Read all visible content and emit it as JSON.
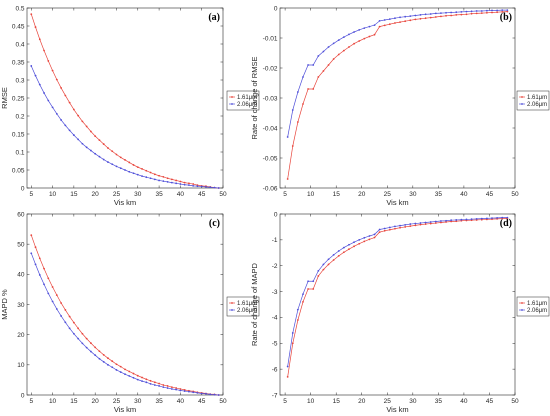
{
  "chart_data": [
    {
      "type": "line",
      "panel_label": "(a)",
      "xlabel": "Vis km",
      "ylabel": "RMSE",
      "xlim": [
        4,
        50
      ],
      "ylim": [
        0,
        0.5
      ],
      "grid": false,
      "legend": "right",
      "xticks": [
        5,
        10,
        15,
        20,
        25,
        30,
        35,
        40,
        45,
        50
      ],
      "xtick_labels": [
        "5",
        "10",
        "15",
        "20",
        "25",
        "30",
        "35",
        "40",
        "45",
        "50"
      ],
      "yticks": [
        0,
        0.05,
        0.1,
        0.15,
        0.2,
        0.25,
        0.3,
        0.35,
        0.4,
        0.45,
        0.5
      ],
      "ytick_labels": [
        "0",
        "0.05",
        "0.1",
        "0.15",
        "0.2",
        "0.25",
        "0.3",
        "0.35",
        "0.4",
        "0.45",
        "0.5"
      ],
      "x": [
        5,
        6,
        7,
        8,
        9,
        10,
        11,
        12,
        13,
        14,
        15,
        16,
        17,
        18,
        19,
        20,
        21,
        22,
        23,
        24,
        25,
        26,
        27,
        28,
        29,
        30,
        31,
        32,
        33,
        34,
        35,
        36,
        37,
        38,
        39,
        40,
        41,
        42,
        43,
        44,
        45,
        46,
        47,
        48,
        49
      ],
      "series": [
        {
          "name": "1.61μm",
          "color": "#e8453c",
          "values": [
            0.483,
            0.447,
            0.413,
            0.382,
            0.353,
            0.326,
            0.301,
            0.278,
            0.257,
            0.237,
            0.218,
            0.201,
            0.185,
            0.171,
            0.157,
            0.144,
            0.133,
            0.122,
            0.111,
            0.102,
            0.093,
            0.085,
            0.078,
            0.071,
            0.064,
            0.058,
            0.053,
            0.048,
            0.043,
            0.038,
            0.034,
            0.031,
            0.027,
            0.024,
            0.021,
            0.018,
            0.015,
            0.013,
            0.011,
            0.008,
            0.006,
            0.005,
            0.003,
            0.001,
            0
          ]
        },
        {
          "name": "2.06μm",
          "color": "#4f4fd9",
          "values": [
            0.339,
            0.312,
            0.287,
            0.264,
            0.243,
            0.224,
            0.206,
            0.189,
            0.174,
            0.16,
            0.147,
            0.135,
            0.123,
            0.113,
            0.104,
            0.095,
            0.087,
            0.079,
            0.072,
            0.066,
            0.06,
            0.055,
            0.05,
            0.045,
            0.041,
            0.037,
            0.033,
            0.03,
            0.027,
            0.024,
            0.021,
            0.019,
            0.017,
            0.015,
            0.013,
            0.011,
            0.009,
            0.008,
            0.006,
            0.005,
            0.004,
            0.003,
            0.002,
            0.001,
            0
          ]
        }
      ]
    },
    {
      "type": "line",
      "panel_label": "(b)",
      "xlabel": "Vis km",
      "ylabel": "Rate of change of RMSE",
      "xlim": [
        4,
        50
      ],
      "ylim": [
        -0.06,
        0
      ],
      "grid": false,
      "legend": "right",
      "xticks": [
        5,
        10,
        15,
        20,
        25,
        30,
        35,
        40,
        45,
        50
      ],
      "xtick_labels": [
        "5",
        "10",
        "15",
        "20",
        "25",
        "30",
        "35",
        "40",
        "45",
        "50"
      ],
      "yticks": [
        -0.06,
        -0.05,
        -0.04,
        -0.03,
        -0.02,
        -0.01,
        0
      ],
      "ytick_labels": [
        "-0.06",
        "-0.05",
        "-0.04",
        "-0.03",
        "-0.02",
        "-0.01",
        "0"
      ],
      "x": [
        5.5,
        6.5,
        7.5,
        8.5,
        9.5,
        10.5,
        11.5,
        12.5,
        13.5,
        14.5,
        15.5,
        16.5,
        17.5,
        18.5,
        19.5,
        20.5,
        21.5,
        22.5,
        23.5,
        24.5,
        25.5,
        26.5,
        27.5,
        28.5,
        29.5,
        30.5,
        31.5,
        32.5,
        33.5,
        34.5,
        35.5,
        36.5,
        37.5,
        38.5,
        39.5,
        40.5,
        41.5,
        42.5,
        43.5,
        44.5,
        45.5,
        46.5,
        47.5,
        48.5
      ],
      "series": [
        {
          "name": "1.61μm",
          "color": "#e8453c",
          "values": [
            -0.057,
            -0.046,
            -0.038,
            -0.032,
            -0.027,
            -0.027,
            -0.023,
            -0.021,
            -0.019,
            -0.017,
            -0.0155,
            -0.0142,
            -0.013,
            -0.0119,
            -0.011,
            -0.0102,
            -0.0095,
            -0.0089,
            -0.0062,
            -0.0058,
            -0.0054,
            -0.005,
            -0.0047,
            -0.0044,
            -0.0041,
            -0.0038,
            -0.0036,
            -0.0034,
            -0.0032,
            -0.003,
            -0.0028,
            -0.0026,
            -0.0025,
            -0.0023,
            -0.0022,
            -0.0021,
            -0.0019,
            -0.0018,
            -0.0017,
            -0.0016,
            -0.0015,
            -0.0014,
            -0.0013,
            -0.0012
          ]
        },
        {
          "name": "2.06μm",
          "color": "#4f4fd9",
          "values": [
            -0.043,
            -0.034,
            -0.028,
            -0.023,
            -0.019,
            -0.019,
            -0.016,
            -0.0145,
            -0.013,
            -0.0118,
            -0.0107,
            -0.0097,
            -0.0088,
            -0.008,
            -0.0073,
            -0.0067,
            -0.0062,
            -0.0057,
            -0.0043,
            -0.004,
            -0.0037,
            -0.0034,
            -0.0031,
            -0.0029,
            -0.0027,
            -0.0025,
            -0.0023,
            -0.0021,
            -0.002,
            -0.0018,
            -0.0017,
            -0.0016,
            -0.0015,
            -0.0014,
            -0.0013,
            -0.0012,
            -0.0011,
            -0.001,
            -0.001,
            -0.0009,
            -0.0008,
            -0.0008,
            -0.0007,
            -0.0007
          ]
        }
      ]
    },
    {
      "type": "line",
      "panel_label": "(c)",
      "xlabel": "Vis km",
      "ylabel": "MAPD %",
      "xlim": [
        4,
        50
      ],
      "ylim": [
        0,
        60
      ],
      "grid": false,
      "legend": "right",
      "xticks": [
        5,
        10,
        15,
        20,
        25,
        30,
        35,
        40,
        45,
        50
      ],
      "xtick_labels": [
        "5",
        "10",
        "15",
        "20",
        "25",
        "30",
        "35",
        "40",
        "45",
        "50"
      ],
      "yticks": [
        0,
        10,
        20,
        30,
        40,
        50,
        60
      ],
      "ytick_labels": [
        "0",
        "10",
        "20",
        "30",
        "40",
        "50",
        "60"
      ],
      "x": [
        5,
        6,
        7,
        8,
        9,
        10,
        11,
        12,
        13,
        14,
        15,
        16,
        17,
        18,
        19,
        20,
        21,
        22,
        23,
        24,
        25,
        26,
        27,
        28,
        29,
        30,
        31,
        32,
        33,
        34,
        35,
        36,
        37,
        38,
        39,
        40,
        41,
        42,
        43,
        44,
        45,
        46,
        47,
        48,
        49
      ],
      "series": [
        {
          "name": "1.61μm",
          "color": "#e8453c",
          "values": [
            53.0,
            49.0,
            45.3,
            41.9,
            38.7,
            35.8,
            33.1,
            30.5,
            28.2,
            26.0,
            24.0,
            22.1,
            20.3,
            18.7,
            17.2,
            15.8,
            14.5,
            13.3,
            12.2,
            11.2,
            10.2,
            9.4,
            8.5,
            7.8,
            7.1,
            6.4,
            5.8,
            5.2,
            4.7,
            4.2,
            3.8,
            3.3,
            3.0,
            2.6,
            2.3,
            2.0,
            1.7,
            1.4,
            1.2,
            0.9,
            0.7,
            0.5,
            0.3,
            0.2,
            0.0
          ]
        },
        {
          "name": "2.06μm",
          "color": "#4f4fd9",
          "values": [
            47.0,
            43.3,
            39.8,
            36.7,
            33.7,
            31.0,
            28.5,
            26.2,
            24.1,
            22.1,
            20.3,
            18.7,
            17.1,
            15.7,
            14.4,
            13.2,
            12.0,
            11.0,
            10.0,
            9.2,
            8.3,
            7.6,
            6.9,
            6.3,
            5.7,
            5.1,
            4.6,
            4.2,
            3.7,
            3.3,
            3.0,
            2.6,
            2.3,
            2.0,
            1.8,
            1.5,
            1.3,
            1.1,
            0.9,
            0.7,
            0.5,
            0.4,
            0.2,
            0.1,
            0.0
          ]
        }
      ]
    },
    {
      "type": "line",
      "panel_label": "(d)",
      "xlabel": "Vis km",
      "ylabel": "Rate of change of MAPD",
      "xlim": [
        4,
        50
      ],
      "ylim": [
        -7,
        0
      ],
      "grid": false,
      "legend": "right",
      "xticks": [
        5,
        10,
        15,
        20,
        25,
        30,
        35,
        40,
        45,
        50
      ],
      "xtick_labels": [
        "5",
        "10",
        "15",
        "20",
        "25",
        "30",
        "35",
        "40",
        "45",
        "50"
      ],
      "yticks": [
        -7,
        -6,
        -5,
        -4,
        -3,
        -2,
        -1,
        0
      ],
      "ytick_labels": [
        "-7",
        "-6",
        "-5",
        "-4",
        "-3",
        "-2",
        "-1",
        "0"
      ],
      "x": [
        5.5,
        6.5,
        7.5,
        8.5,
        9.5,
        10.5,
        11.5,
        12.5,
        13.5,
        14.5,
        15.5,
        16.5,
        17.5,
        18.5,
        19.5,
        20.5,
        21.5,
        22.5,
        23.5,
        24.5,
        25.5,
        26.5,
        27.5,
        28.5,
        29.5,
        30.5,
        31.5,
        32.5,
        33.5,
        34.5,
        35.5,
        36.5,
        37.5,
        38.5,
        39.5,
        40.5,
        41.5,
        42.5,
        43.5,
        44.5,
        45.5,
        46.5,
        47.5,
        48.5
      ],
      "series": [
        {
          "name": "1.61μm",
          "color": "#e8453c",
          "values": [
            -6.3,
            -5.0,
            -4.1,
            -3.4,
            -2.9,
            -2.9,
            -2.4,
            -2.15,
            -1.95,
            -1.78,
            -1.62,
            -1.48,
            -1.36,
            -1.25,
            -1.15,
            -1.06,
            -0.98,
            -0.91,
            -0.7,
            -0.65,
            -0.61,
            -0.57,
            -0.53,
            -0.5,
            -0.47,
            -0.44,
            -0.41,
            -0.39,
            -0.37,
            -0.35,
            -0.33,
            -0.31,
            -0.29,
            -0.28,
            -0.26,
            -0.25,
            -0.24,
            -0.23,
            -0.22,
            -0.21,
            -0.2,
            -0.19,
            -0.18,
            -0.17
          ]
        },
        {
          "name": "2.06μm",
          "color": "#4f4fd9",
          "values": [
            -5.9,
            -4.6,
            -3.7,
            -3.1,
            -2.6,
            -2.6,
            -2.2,
            -1.95,
            -1.75,
            -1.58,
            -1.43,
            -1.3,
            -1.19,
            -1.09,
            -1.0,
            -0.92,
            -0.85,
            -0.79,
            -0.6,
            -0.56,
            -0.52,
            -0.48,
            -0.45,
            -0.42,
            -0.39,
            -0.37,
            -0.35,
            -0.33,
            -0.31,
            -0.29,
            -0.27,
            -0.26,
            -0.24,
            -0.23,
            -0.22,
            -0.21,
            -0.2,
            -0.19,
            -0.18,
            -0.17,
            -0.16,
            -0.15,
            -0.14,
            -0.14
          ]
        }
      ]
    }
  ]
}
